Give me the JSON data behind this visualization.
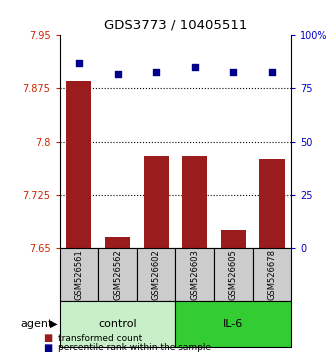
{
  "title": "GDS3773 / 10405511",
  "samples": [
    "GSM526561",
    "GSM526562",
    "GSM526602",
    "GSM526603",
    "GSM526605",
    "GSM526678"
  ],
  "bar_values": [
    7.885,
    7.665,
    7.78,
    7.78,
    7.675,
    7.775
  ],
  "dot_values": [
    87,
    82,
    83,
    85,
    83,
    83
  ],
  "ylim_left": [
    7.65,
    7.95
  ],
  "ylim_right": [
    0,
    100
  ],
  "yticks_left": [
    7.65,
    7.725,
    7.8,
    7.875,
    7.95
  ],
  "yticks_right": [
    0,
    25,
    50,
    75,
    100
  ],
  "ytick_labels_left": [
    "7.65",
    "7.725",
    "7.8",
    "7.875",
    "7.95"
  ],
  "ytick_labels_right": [
    "0",
    "25",
    "50",
    "75",
    "100%"
  ],
  "bar_color": "#9B1C1C",
  "dot_color": "#00008B",
  "gridlines_at": [
    7.875,
    7.8,
    7.725
  ],
  "control_samples": [
    0,
    1,
    2
  ],
  "il6_samples": [
    3,
    4,
    5
  ],
  "control_label": "control",
  "il6_label": "IL-6",
  "control_color": "#C8F0C8",
  "il6_color": "#33CC33",
  "sample_box_color": "#CCCCCC",
  "agent_label": "agent",
  "legend_bar_label": "transformed count",
  "legend_dot_label": "percentile rank within the sample",
  "bar_width": 0.65,
  "figsize": [
    3.31,
    3.54
  ],
  "dpi": 100
}
